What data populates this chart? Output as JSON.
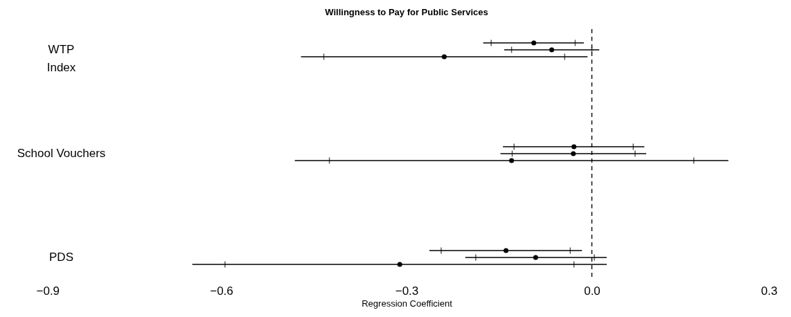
{
  "chart_data": {
    "type": "box",
    "title": "Willingness to Pay for Public Services",
    "xlabel": "Regression Coefficient",
    "orientation": "horizontal",
    "categories": [
      "WTP\nIndex",
      "School Vouchers",
      "PDS"
    ],
    "series": [
      {
        "color": "#000000",
        "boxes": [
          {
            "low": -0.176,
            "q1": -0.163,
            "median": -0.094,
            "q3": -0.027,
            "high": -0.013
          },
          {
            "low": -0.144,
            "q1": -0.126,
            "median": -0.029,
            "q3": 0.067,
            "high": 0.085
          },
          {
            "low": -0.263,
            "q1": -0.244,
            "median": -0.139,
            "q3": -0.035,
            "high": -0.016
          }
        ]
      },
      {
        "color": "#000000",
        "boxes": [
          {
            "low": -0.142,
            "q1": -0.13,
            "median": -0.065,
            "q3": 0.0,
            "high": 0.012
          },
          {
            "low": -0.148,
            "q1": -0.129,
            "median": -0.03,
            "q3": 0.07,
            "high": 0.088
          },
          {
            "low": -0.205,
            "q1": -0.188,
            "median": -0.091,
            "q3": 0.004,
            "high": 0.024
          }
        ]
      },
      {
        "color": "#000000",
        "boxes": [
          {
            "low": -0.471,
            "q1": -0.434,
            "median": -0.239,
            "q3": -0.044,
            "high": -0.007
          },
          {
            "low": -0.481,
            "q1": -0.425,
            "median": -0.13,
            "q3": 0.165,
            "high": 0.221
          },
          {
            "low": -0.647,
            "q1": -0.594,
            "median": -0.311,
            "q3": -0.029,
            "high": 0.024
          }
        ]
      }
    ],
    "xlim": [
      -0.9,
      0.3
    ],
    "xticks": [
      {
        "value": -0.9,
        "label": "−0.9"
      },
      {
        "value": -0.6,
        "label": "−0.6"
      },
      {
        "value": -0.3,
        "label": "−0.3"
      },
      {
        "value": 0,
        "label": "0.0"
      },
      {
        "value": 0.3,
        "label": "0.3"
      }
    ],
    "ref_lines": [
      {
        "axis": "x",
        "value": 0,
        "color": "#000000",
        "line_style": "dashed"
      }
    ],
    "marker": "circle",
    "grid": false
  }
}
